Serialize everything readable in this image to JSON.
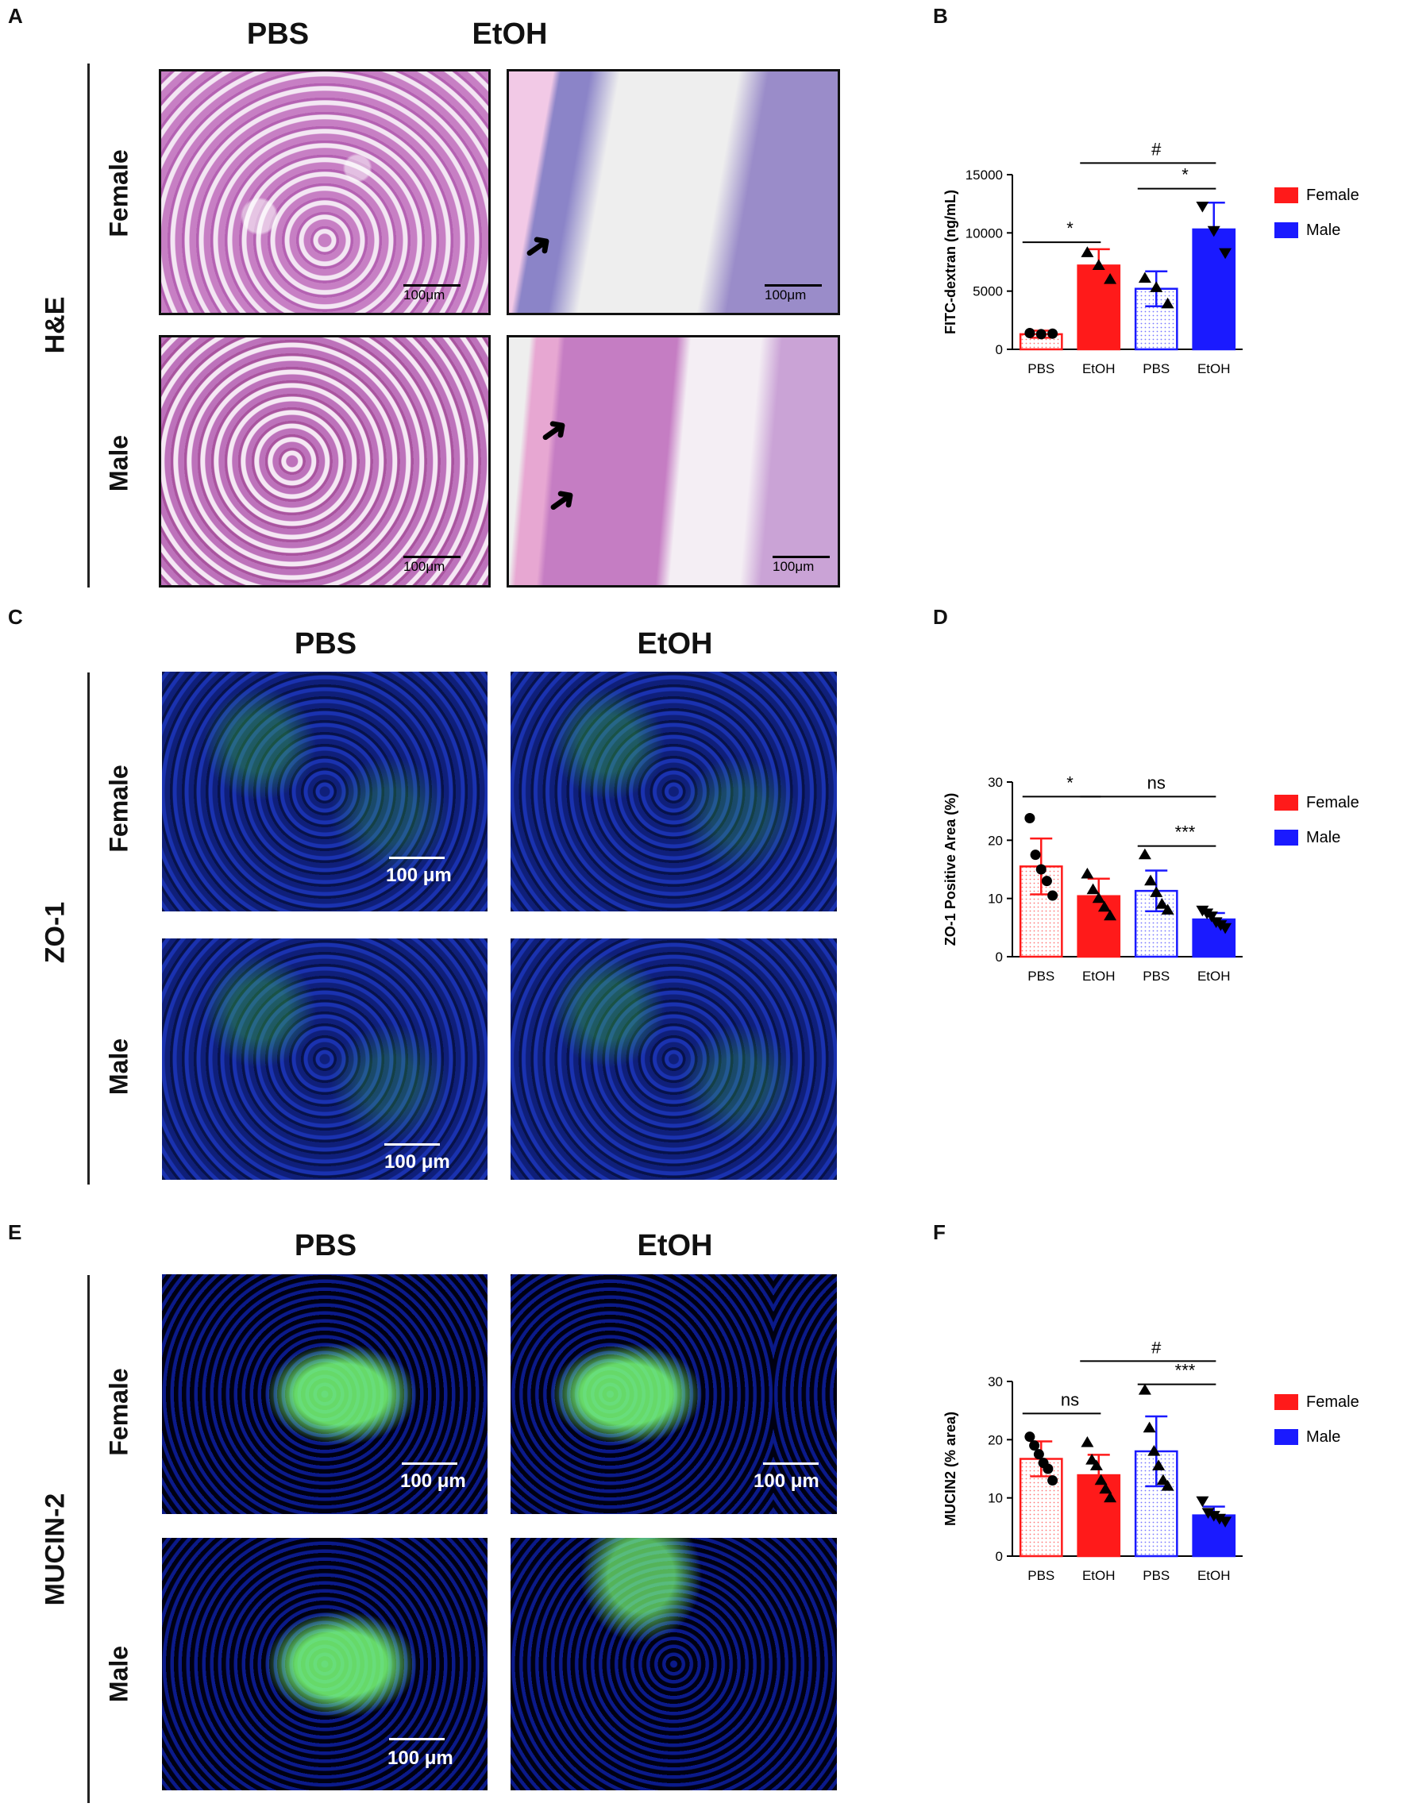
{
  "panels": {
    "A": "A",
    "B": "B",
    "C": "C",
    "D": "D",
    "E": "E",
    "F": "F"
  },
  "columns": {
    "pbs": "PBS",
    "etoh": "EtOH"
  },
  "rows": {
    "female": "Female",
    "male": "Male"
  },
  "stains": {
    "he": "H&E",
    "zo1": "ZO-1",
    "mucin": "MUCIN-2"
  },
  "scale": {
    "he": "100μm",
    "fl": "100 μm"
  },
  "charts": [
    {
      "type": "bar",
      "ylabel": "FITC-dextran (ng/mL)",
      "ylim": [
        0,
        15000
      ],
      "yticks": [
        0,
        5000,
        10000,
        15000
      ],
      "categories": [
        "PBS",
        "EtOH",
        "PBS",
        "EtOH"
      ],
      "legend": [
        "Female",
        "Male"
      ],
      "colors": {
        "female": "#ff1a1a",
        "male": "#1a1aff"
      },
      "bars": [
        {
          "mean": 1300,
          "sd": 300,
          "sex": "female",
          "filled": false,
          "points": [
            1400,
            1300,
            1350
          ],
          "marker": "circle"
        },
        {
          "mean": 7200,
          "sd": 1400,
          "sex": "female",
          "filled": true,
          "points": [
            8300,
            7200,
            6000
          ],
          "marker": "triangle"
        },
        {
          "mean": 5200,
          "sd": 1500,
          "sex": "male",
          "filled": false,
          "points": [
            6100,
            5300,
            3900
          ],
          "marker": "triangle"
        },
        {
          "mean": 10300,
          "sd": 2300,
          "sex": "male",
          "filled": true,
          "points": [
            12300,
            10200,
            8300
          ],
          "marker": "tri-down"
        }
      ],
      "annotations": [
        {
          "label": "*",
          "from": 0,
          "to": 1,
          "y": 9200
        },
        {
          "label": "#",
          "from": 1,
          "to": 3,
          "y": 16000
        },
        {
          "label": "*",
          "from": 2,
          "to": 3,
          "y": 13800
        }
      ]
    },
    {
      "type": "bar",
      "ylabel": "ZO-1 Positive Area (%)",
      "ylim": [
        0,
        30
      ],
      "yticks": [
        0,
        10,
        20,
        30
      ],
      "categories": [
        "PBS",
        "EtOH",
        "PBS",
        "EtOH"
      ],
      "legend": [
        "Female",
        "Male"
      ],
      "colors": {
        "female": "#ff1a1a",
        "male": "#1a1aff"
      },
      "bars": [
        {
          "mean": 15.5,
          "sd": 4.8,
          "sex": "female",
          "filled": false,
          "points": [
            23.8,
            17.5,
            15,
            13,
            10.5
          ],
          "marker": "circle"
        },
        {
          "mean": 10.4,
          "sd": 3.0,
          "sex": "female",
          "filled": true,
          "points": [
            14.2,
            11.5,
            10,
            8.5,
            7
          ],
          "marker": "triangle"
        },
        {
          "mean": 11.3,
          "sd": 3.5,
          "sex": "male",
          "filled": false,
          "points": [
            17.5,
            13,
            11,
            9,
            8
          ],
          "marker": "triangle"
        },
        {
          "mean": 6.4,
          "sd": 1.1,
          "sex": "male",
          "filled": true,
          "points": [
            8,
            7.5,
            7,
            6,
            5.5,
            5
          ],
          "marker": "tri-down"
        }
      ],
      "annotations": [
        {
          "label": "*",
          "from": 0,
          "to": 1,
          "y": 27.5
        },
        {
          "label": "ns",
          "from": 1,
          "to": 3,
          "y": 27.5
        },
        {
          "label": "***",
          "from": 2,
          "to": 3,
          "y": 19
        }
      ]
    },
    {
      "type": "bar",
      "ylabel": "MUCIN2 (% area)",
      "ylim": [
        0,
        30
      ],
      "yticks": [
        0,
        10,
        20,
        30
      ],
      "categories": [
        "PBS",
        "EtOH",
        "PBS",
        "EtOH"
      ],
      "legend": [
        "Female",
        "Male"
      ],
      "colors": {
        "female": "#ff1a1a",
        "male": "#1a1aff"
      },
      "bars": [
        {
          "mean": 16.7,
          "sd": 3.0,
          "sex": "female",
          "filled": false,
          "points": [
            20.5,
            19,
            17.5,
            16,
            15,
            13
          ],
          "marker": "circle"
        },
        {
          "mean": 13.9,
          "sd": 3.5,
          "sex": "female",
          "filled": true,
          "points": [
            19.5,
            16.5,
            15.5,
            13,
            11.5,
            10
          ],
          "marker": "triangle"
        },
        {
          "mean": 18.0,
          "sd": 6.0,
          "sex": "male",
          "filled": false,
          "points": [
            28.5,
            22,
            18,
            15.5,
            13,
            12
          ],
          "marker": "triangle"
        },
        {
          "mean": 7.0,
          "sd": 1.5,
          "sex": "male",
          "filled": true,
          "points": [
            9.5,
            7.5,
            7,
            6.5,
            6
          ],
          "marker": "tri-down"
        }
      ],
      "annotations": [
        {
          "label": "ns",
          "from": 0,
          "to": 1,
          "y": 24.5
        },
        {
          "label": "#",
          "from": 1,
          "to": 3,
          "y": 33.5
        },
        {
          "label": "***",
          "from": 2,
          "to": 3,
          "y": 29.5
        }
      ]
    }
  ]
}
